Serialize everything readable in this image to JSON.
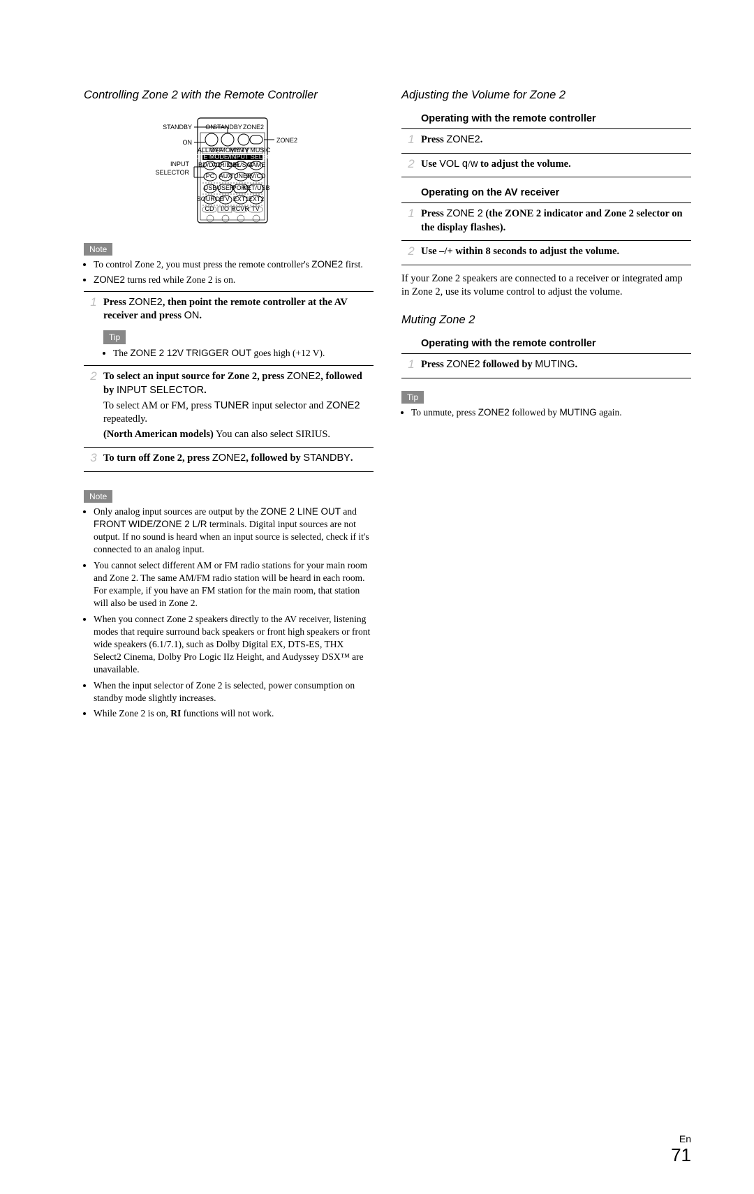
{
  "left": {
    "title": "Controlling Zone 2 with the Remote Controller",
    "diagram": {
      "labels": {
        "standby": "STANDBY",
        "on": "ON",
        "input_selector": "INPUT\nSELECTOR",
        "zone2": "ZONE2"
      },
      "top_row_small": [
        "ON",
        "STANDBY",
        "ZONE2"
      ],
      "bar1": [
        "ALL OFF",
        "MY MOVIE",
        "MY TV",
        "MY MUSIC"
      ],
      "bar2": "REMOTE MODE/INPUT SELECTOR",
      "row1": [
        "BD/DVD",
        "VCR/DVR",
        "CBL/SAT",
        "GAME"
      ],
      "row2": [
        "PC",
        "AUX",
        "TUNER",
        "TV/CD"
      ],
      "row3": "USB",
      "row4": [
        "USER",
        "PORT",
        "NET/USB"
      ],
      "row5": [
        "SOURCE",
        "TV",
        "EXT1",
        "EXT2"
      ],
      "bar3": [
        "CD",
        "I/O",
        "RCVR",
        "TV"
      ]
    },
    "note1_label": "Note",
    "note1_items": [
      "To control Zone 2, you must press the remote controller's <span class=\"sans\">ZONE2</span> first.",
      "<span class=\"sans\">ZONE2</span> turns red while Zone 2 is on."
    ],
    "step1": {
      "num": "1",
      "main": "<b>Press</b> <span class=\"sans\">ZONE2</span><b>, then point the remote controller at the AV receiver and press</b> <span class=\"sans\">ON</span><b>.</b>",
      "tip_label": "Tip",
      "tip_items": [
        "The <span class=\"sans\">ZONE 2 12V TRIGGER OUT</span> goes high (+12 V)."
      ]
    },
    "step2": {
      "num": "2",
      "lines": [
        "<b>To select an input source for Zone 2, press</b> <span class=\"sans\">ZONE2</span><b>, followed by</b> <span class=\"sans\">INPUT SELECTOR</span><b>.</b>",
        "To select AM or FM, press <span class=\"sans\">TUNER</span> input selector and <span class=\"sans\">ZONE2</span> repeatedly.",
        "<b>(North American models)</b> You can also select SIRIUS."
      ]
    },
    "step3": {
      "num": "3",
      "main": "<b>To turn off Zone 2, press</b> <span class=\"sans\">ZONE2</span><b>, followed by</b> <span class=\"sans\">STANDBY</span><b>.</b>"
    },
    "note2_label": "Note",
    "note2_items": [
      "Only analog input sources are output by the <span class=\"sans\">ZONE 2 LINE OUT</span> and <span class=\"sans\">FRONT WIDE/ZONE 2 L/R</span> terminals. Digital input sources are not output. If no sound is heard when an input source is selected, check if it's connected to an analog input.",
      "You cannot select different AM or FM radio stations for your main room and Zone 2. The same AM/FM radio station will be heard in each room. For example, if you have an FM station for the main room, that station will also be used in Zone 2.",
      "When you connect Zone 2 speakers directly to the AV receiver, listening modes that require surround back speakers or front high speakers or front wide speakers (6.1/7.1), such as Dolby Digital EX, DTS-ES, THX Select2 Cinema, Dolby Pro Logic IIz Height, and Audyssey DSX™ are unavailable.",
      "When the input selector of Zone 2 is selected, power consumption on standby mode slightly increases.",
      "While Zone 2 is on, <b>RI</b> functions will not work."
    ]
  },
  "right": {
    "title1": "Adjusting the Volume for Zone 2",
    "sub1": "Operating with the remote controller",
    "r_step1": {
      "num": "1",
      "main": "<b>Press</b> <span class=\"sans\">ZONE2</span><b>.</b>"
    },
    "r_step2": {
      "num": "2",
      "main": "<b>Use</b> <span class=\"sans\">VOL</span> <span class=\"sans\">q</span>/<span class=\"sans\">w</span> <b>to adjust the volume.</b>"
    },
    "sub2": "Operating on the AV receiver",
    "r_step3": {
      "num": "1",
      "main": "<b>Press</b> <span class=\"sans\">ZONE 2</span> <b>(the ZONE 2 indicator and Zone 2 selector on the display flashes).</b>"
    },
    "r_step4": {
      "num": "2",
      "main": "<b>Use –/+ within 8 seconds to adjust the volume.</b>"
    },
    "para": "If your Zone 2 speakers are connected to a receiver or integrated amp in Zone 2, use its volume control to adjust the volume.",
    "title2": "Muting Zone 2",
    "sub3": "Operating with the remote controller",
    "r_step5": {
      "num": "1",
      "main": "<b>Press</b> <span class=\"sans\">ZONE2</span> <b>followed by</b> <span class=\"sans\">MUTING</span><b>.</b>"
    },
    "tip_label": "Tip",
    "tip_items": [
      "To unmute, press <span class=\"sans\">ZONE2</span> followed by <span class=\"sans\">MUTING</span> again."
    ]
  },
  "footer": {
    "en": "En",
    "page": "71"
  }
}
